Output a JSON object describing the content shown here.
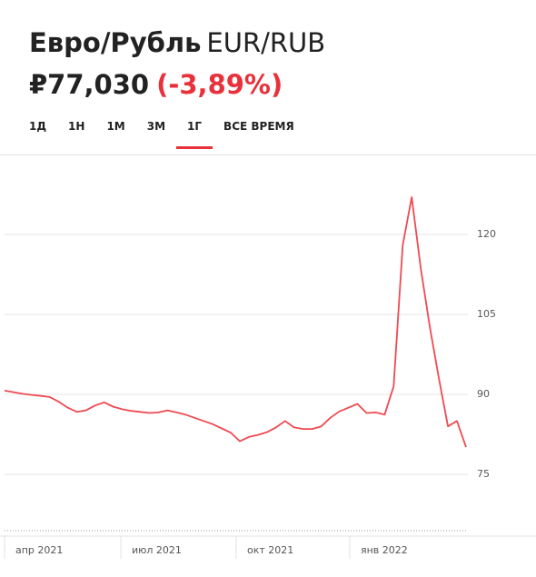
{
  "header": {
    "title": "Евро/Рубль",
    "ticker": "EUR/RUB",
    "price": "₽77,030",
    "change": "(-3,89%)"
  },
  "tabs": {
    "items": [
      "1Д",
      "1Н",
      "1М",
      "3М",
      "1Г",
      "ВСЕ ВРЕМЯ"
    ],
    "active": 4
  },
  "chart_data": {
    "type": "line",
    "color": "#ee4a52",
    "grid": true,
    "values": [
      90.7,
      90.4,
      90.1,
      89.9,
      89.7,
      89.5,
      88.6,
      87.5,
      86.7,
      87.0,
      87.9,
      88.5,
      87.7,
      87.2,
      86.9,
      86.7,
      86.5,
      86.6,
      87.0,
      86.6,
      86.2,
      85.6,
      85.0,
      84.4,
      83.6,
      82.8,
      81.2,
      82.0,
      82.4,
      82.9,
      83.8,
      85.0,
      83.8,
      83.5,
      83.5,
      84.0,
      85.6,
      86.8,
      87.5,
      88.2,
      86.5,
      86.6,
      86.2,
      91.5,
      118,
      127,
      113.6,
      102.6,
      93,
      84,
      85,
      80.1
    ],
    "xlim": [
      0,
      51
    ],
    "xticks": [
      {
        "value": 0,
        "label": "апр 2021"
      },
      {
        "value": 12.85,
        "label": "июл 2021"
      },
      {
        "value": 25.6,
        "label": "окт 2021"
      },
      {
        "value": 38.15,
        "label": "янв 2022"
      }
    ],
    "ylim": [
      73,
      131
    ],
    "yticks": [
      75,
      90,
      105,
      120
    ]
  }
}
